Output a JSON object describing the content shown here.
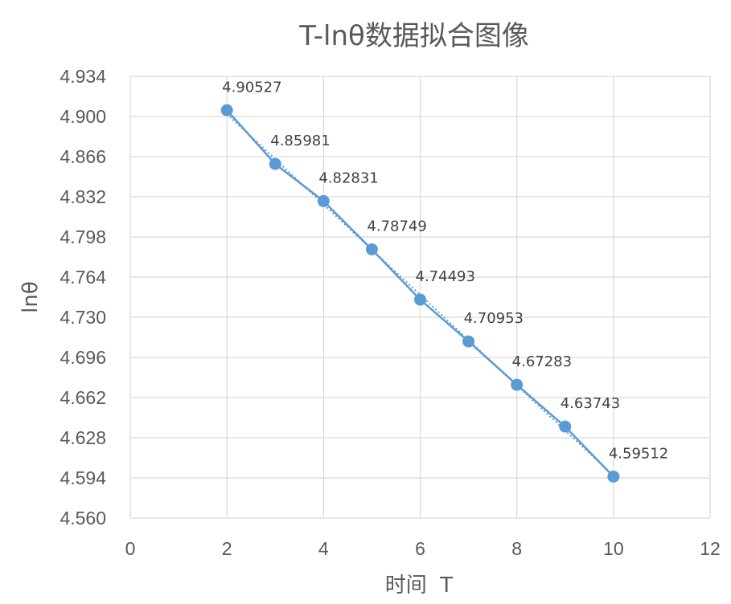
{
  "chart_data": {
    "type": "scatter",
    "title": "T-lnθ数据拟合图像",
    "xlabel": "时间  T",
    "ylabel": "lnθ",
    "xlim": [
      0,
      12
    ],
    "ylim": [
      4.56,
      4.934
    ],
    "x_ticks": [
      "0",
      "2",
      "4",
      "6",
      "8",
      "10",
      "12"
    ],
    "y_ticks": [
      "4.560",
      "4.594",
      "4.628",
      "4.662",
      "4.696",
      "4.730",
      "4.764",
      "4.798",
      "4.832",
      "4.866",
      "4.900",
      "4.934"
    ],
    "grid": true,
    "legend": "none",
    "series": [
      {
        "x": [
          2,
          3,
          4,
          5,
          6,
          7,
          8,
          9,
          10
        ],
        "y": [
          4.90527,
          4.85981,
          4.82831,
          4.78749,
          4.74493,
          4.70953,
          4.67283,
          4.63743,
          4.59512
        ],
        "labels": [
          "4.90527",
          "4.85981",
          "4.82831",
          "4.78749",
          "4.74493",
          "4.70953",
          "4.67283",
          "4.63743",
          "4.59512"
        ],
        "color": "#5B9BD5",
        "connected": true,
        "markers": true
      }
    ],
    "trendline": {
      "type": "linear",
      "style": "dotted",
      "color": "#5B9BD5"
    },
    "grid_color": "#D9D9D9"
  }
}
